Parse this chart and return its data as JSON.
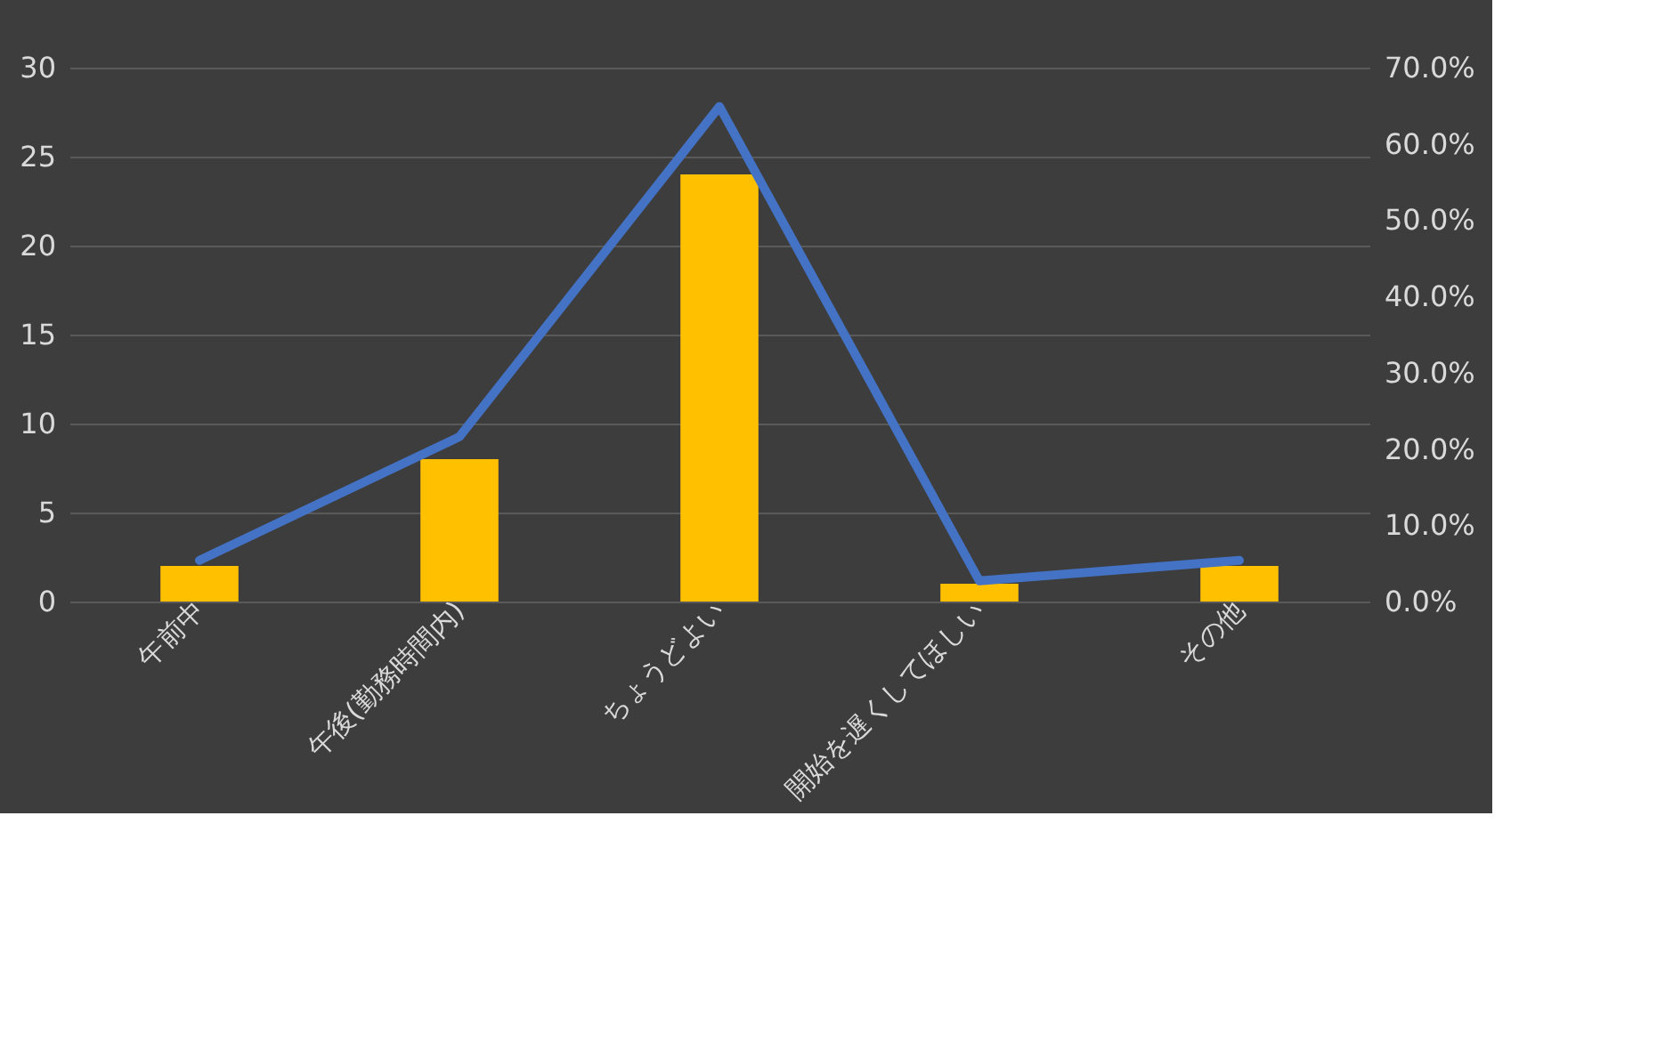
{
  "chart_data": {
    "type": "bar",
    "categories": [
      "午前中",
      "午後(勤務時間内)",
      "ちょうどよい",
      "開始を遅くしてほしい",
      "その他"
    ],
    "series": [
      {
        "color": "#ffc000",
        "values": [
          2,
          8,
          24,
          1,
          2
        ]
      },
      {
        "type": "line",
        "axis": "y2",
        "color": "#4472c4",
        "values": [
          5.4,
          21.6,
          64.9,
          2.7,
          5.4
        ]
      }
    ],
    "ylim": [
      0,
      30
    ],
    "yticks": [
      0,
      5,
      10,
      15,
      20,
      25,
      30
    ],
    "y2lim": [
      0,
      70
    ],
    "y2ticks": [
      {
        "value": 0,
        "label": "0.0%"
      },
      {
        "value": 10,
        "label": "10.0%"
      },
      {
        "value": 20,
        "label": "20.0%"
      },
      {
        "value": 30,
        "label": "30.0%"
      },
      {
        "value": 40,
        "label": "40.0%"
      },
      {
        "value": 50,
        "label": "50.0%"
      },
      {
        "value": 60,
        "label": "60.0%"
      },
      {
        "value": 70,
        "label": "70.0%"
      }
    ],
    "grid": "y",
    "marker": "none",
    "line_style": "solid"
  }
}
